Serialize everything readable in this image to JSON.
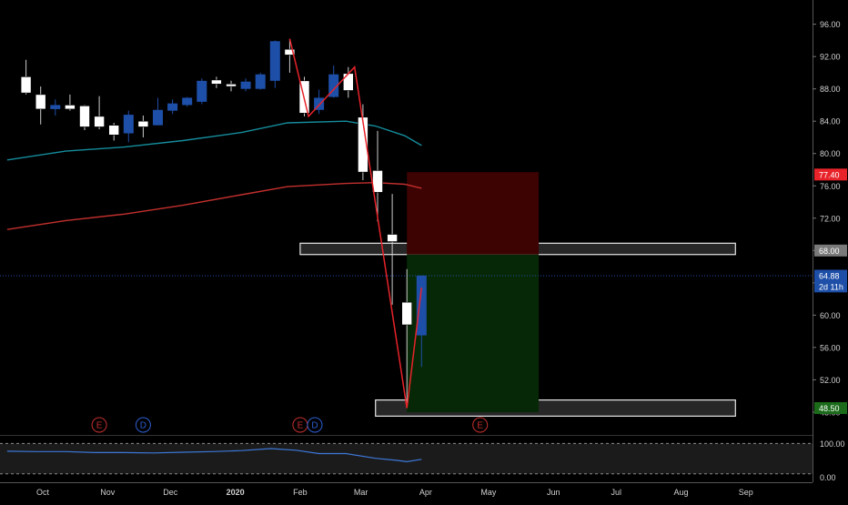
{
  "chart_data": {
    "type": "candlestick",
    "price_axis": {
      "ticks": [
        "96.00",
        "92.00",
        "88.00",
        "84.00",
        "80.00",
        "76.00",
        "72.00",
        "68.00",
        "64.00",
        "60.00",
        "56.00",
        "52.00",
        "48.00"
      ],
      "ylim": [
        45.4,
        99.0
      ]
    },
    "time_axis": {
      "labels": [
        "Oct",
        "Nov",
        "Dec",
        "2020",
        "Feb",
        "Mar",
        "Apr",
        "May",
        "Jun",
        "Jul",
        "Aug",
        "Sep"
      ],
      "label_dates": [
        "2019-10-01",
        "2019-11-01",
        "2019-12-01",
        "2020-01-01",
        "2020-02-01",
        "2020-03-01",
        "2020-04-01",
        "2020-05-01",
        "2020-06-01",
        "2020-07-01",
        "2020-08-01",
        "2020-09-01"
      ],
      "bold_labels": [
        "2020"
      ]
    },
    "candles": [
      {
        "date": "2019-09-23",
        "open": 89.5,
        "high": 91.6,
        "low": 87.3,
        "close": 87.5
      },
      {
        "date": "2019-09-30",
        "open": 87.3,
        "high": 88.3,
        "low": 83.6,
        "close": 85.5
      },
      {
        "date": "2019-10-07",
        "open": 85.5,
        "high": 86.7,
        "low": 84.7,
        "close": 86.0
      },
      {
        "date": "2019-10-14",
        "open": 86.0,
        "high": 87.3,
        "low": 85.3,
        "close": 85.5
      },
      {
        "date": "2019-10-21",
        "open": 85.9,
        "high": 86.0,
        "low": 82.9,
        "close": 83.3
      },
      {
        "date": "2019-10-28",
        "open": 84.6,
        "high": 87.1,
        "low": 83.0,
        "close": 83.3
      },
      {
        "date": "2019-11-04",
        "open": 83.5,
        "high": 83.8,
        "low": 81.6,
        "close": 82.3
      },
      {
        "date": "2019-11-11",
        "open": 82.5,
        "high": 85.3,
        "low": 81.4,
        "close": 84.8
      },
      {
        "date": "2019-11-18",
        "open": 84.0,
        "high": 84.7,
        "low": 82.0,
        "close": 83.3
      },
      {
        "date": "2019-11-25",
        "open": 83.5,
        "high": 86.9,
        "low": 83.5,
        "close": 85.4
      },
      {
        "date": "2019-12-02",
        "open": 85.3,
        "high": 86.7,
        "low": 84.9,
        "close": 86.2
      },
      {
        "date": "2019-12-09",
        "open": 86.0,
        "high": 87.0,
        "low": 85.8,
        "close": 86.9
      },
      {
        "date": "2019-12-16",
        "open": 86.4,
        "high": 89.3,
        "low": 86.1,
        "close": 89.0
      },
      {
        "date": "2019-12-23",
        "open": 89.1,
        "high": 89.5,
        "low": 88.1,
        "close": 88.6
      },
      {
        "date": "2019-12-30",
        "open": 88.6,
        "high": 89.0,
        "low": 87.7,
        "close": 88.3
      },
      {
        "date": "2020-01-06",
        "open": 88.0,
        "high": 89.3,
        "low": 87.7,
        "close": 88.9
      },
      {
        "date": "2020-01-13",
        "open": 88.0,
        "high": 90.0,
        "low": 87.9,
        "close": 89.8
      },
      {
        "date": "2020-01-20",
        "open": 89.0,
        "high": 94.0,
        "low": 88.1,
        "close": 93.9
      },
      {
        "date": "2020-01-27",
        "open": 92.9,
        "high": 94.2,
        "low": 90.0,
        "close": 92.2
      },
      {
        "date": "2020-02-03",
        "open": 89.0,
        "high": 89.5,
        "low": 84.6,
        "close": 85.0
      },
      {
        "date": "2020-02-10",
        "open": 85.4,
        "high": 87.9,
        "low": 84.9,
        "close": 86.9
      },
      {
        "date": "2020-02-17",
        "open": 87.0,
        "high": 90.9,
        "low": 86.9,
        "close": 89.8
      },
      {
        "date": "2020-02-24",
        "open": 89.9,
        "high": 90.7,
        "low": 86.9,
        "close": 87.8
      },
      {
        "date": "2020-03-02",
        "open": 84.5,
        "high": 86.1,
        "low": 76.7,
        "close": 77.7
      },
      {
        "date": "2020-03-09",
        "open": 77.9,
        "high": 82.8,
        "low": 71.6,
        "close": 75.2
      },
      {
        "date": "2020-03-16",
        "open": 70.0,
        "high": 75.0,
        "low": 61.3,
        "close": 69.1
      },
      {
        "date": "2020-03-23",
        "open": 61.6,
        "high": 65.7,
        "low": 48.5,
        "close": 58.8
      },
      {
        "date": "2020-03-30",
        "open": 57.5,
        "high": 64.9,
        "low": 53.6,
        "close": 64.9
      }
    ],
    "candle_colors": {
      "up": "#1e4fa8",
      "down": "#ffffff"
    },
    "ma_series": [
      {
        "color": "#158c9c",
        "points": [
          {
            "date": "2019-09-14",
            "value": 79.2
          },
          {
            "date": "2019-10-12",
            "value": 80.3
          },
          {
            "date": "2019-11-09",
            "value": 80.8
          },
          {
            "date": "2019-12-07",
            "value": 81.6
          },
          {
            "date": "2020-01-04",
            "value": 82.6
          },
          {
            "date": "2020-01-26",
            "value": 83.8
          },
          {
            "date": "2020-02-23",
            "value": 84.0
          },
          {
            "date": "2020-03-08",
            "value": 83.4
          },
          {
            "date": "2020-03-22",
            "value": 82.2
          },
          {
            "date": "2020-03-30",
            "value": 81.0
          }
        ]
      },
      {
        "color": "#c2302e",
        "points": [
          {
            "date": "2019-09-14",
            "value": 70.6
          },
          {
            "date": "2019-10-12",
            "value": 71.7
          },
          {
            "date": "2019-11-09",
            "value": 72.5
          },
          {
            "date": "2019-12-07",
            "value": 73.6
          },
          {
            "date": "2020-01-04",
            "value": 74.9
          },
          {
            "date": "2020-01-26",
            "value": 75.9
          },
          {
            "date": "2020-02-23",
            "value": 76.3
          },
          {
            "date": "2020-03-08",
            "value": 76.4
          },
          {
            "date": "2020-03-22",
            "value": 76.2
          },
          {
            "date": "2020-03-30",
            "value": 75.7
          }
        ]
      }
    ],
    "zigzag": {
      "color": "#e8232a",
      "points": [
        {
          "date": "2020-01-27",
          "value": 94.2
        },
        {
          "date": "2020-02-05",
          "value": 84.6
        },
        {
          "date": "2020-02-27",
          "value": 90.7
        },
        {
          "date": "2020-03-23",
          "value": 48.5
        },
        {
          "date": "2020-03-30",
          "value": 63.4
        }
      ]
    },
    "position": {
      "entry": 67.5,
      "stop": 77.7,
      "target": 48.0,
      "start_date": "2020-03-23",
      "end_date": "2020-05-25",
      "stop_color": "#3d0202",
      "target_color": "#062806"
    },
    "zones": [
      {
        "top": 68.9,
        "bottom": 67.5,
        "start_date": "2020-02-01",
        "end_date": "2020-08-27"
      },
      {
        "top": 49.5,
        "bottom": 47.5,
        "start_date": "2020-03-08",
        "end_date": "2020-08-27"
      }
    ],
    "current_price_line": {
      "value": 64.88,
      "color": "#1e4fa8"
    },
    "price_labels": [
      {
        "text": "77.40",
        "value": 77.4,
        "bg": "#e8232a",
        "color": "#ffffff"
      },
      {
        "text": "68.00",
        "value": 68.0,
        "bg": "#7a7a7a",
        "color": "#ffffff"
      },
      {
        "text": "64.88",
        "value": 64.88,
        "bg": "#1e4fa8",
        "color": "#ffffff"
      },
      {
        "text": "2d 11h",
        "value": 63.55,
        "bg": "#1e4fa8",
        "color": "#ffffff"
      },
      {
        "text": "48.50",
        "value": 48.5,
        "bg": "#1b6b1b",
        "color": "#ffffff"
      }
    ],
    "events": [
      {
        "letter": "E",
        "date": "2019-10-28",
        "color": "#c2302e"
      },
      {
        "letter": "D",
        "date": "2019-11-18",
        "color": "#2d5fd0"
      },
      {
        "letter": "E",
        "date": "2020-02-01",
        "color": "#c2302e"
      },
      {
        "letter": "D",
        "date": "2020-02-08",
        "color": "#2d5fd0"
      },
      {
        "letter": "E",
        "date": "2020-04-27",
        "color": "#c2302e"
      }
    ],
    "oscillator": {
      "ticks": [
        "100.00",
        "0.00"
      ],
      "ylim": [
        -15,
        120
      ],
      "band": [
        10,
        100
      ],
      "color": "#3d78d8",
      "points": [
        {
          "date": "2019-09-14",
          "value": 77
        },
        {
          "date": "2019-09-28",
          "value": 76
        },
        {
          "date": "2019-10-12",
          "value": 76
        },
        {
          "date": "2019-10-26",
          "value": 73
        },
        {
          "date": "2019-11-09",
          "value": 73
        },
        {
          "date": "2019-11-23",
          "value": 72
        },
        {
          "date": "2019-12-07",
          "value": 74
        },
        {
          "date": "2019-12-21",
          "value": 76
        },
        {
          "date": "2020-01-04",
          "value": 79
        },
        {
          "date": "2020-01-18",
          "value": 85
        },
        {
          "date": "2020-01-30",
          "value": 80
        },
        {
          "date": "2020-02-10",
          "value": 70
        },
        {
          "date": "2020-02-23",
          "value": 70
        },
        {
          "date": "2020-03-08",
          "value": 56
        },
        {
          "date": "2020-03-18",
          "value": 50
        },
        {
          "date": "2020-03-23",
          "value": 46
        },
        {
          "date": "2020-03-30",
          "value": 53
        }
      ]
    }
  }
}
